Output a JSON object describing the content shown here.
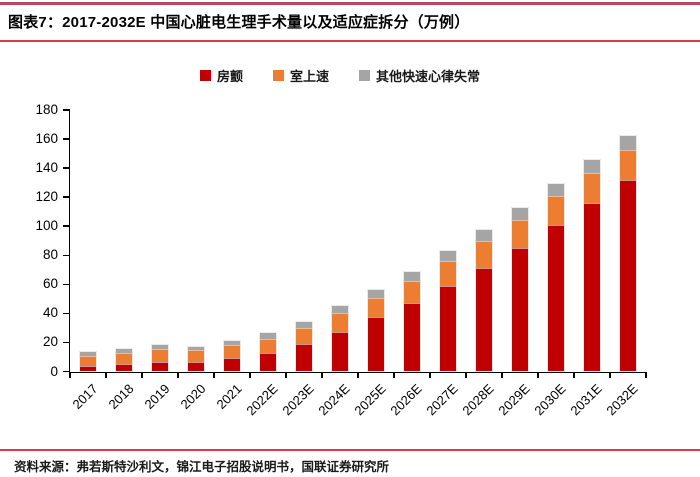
{
  "header": {
    "title": "图表7：2017-2032E 中国心脏电生理手术量以及适应症拆分（万例）"
  },
  "footer": {
    "source": "资料来源：弗若斯特沙利文，锦江电子招股说明书，国联证券研究所"
  },
  "colors": {
    "afib": "#C00000",
    "svt": "#ED7D31",
    "other": "#A5A5A5",
    "rule_top": "#B84A60",
    "rule": "#D83A50",
    "axis": "#000000"
  },
  "chart_data": {
    "type": "bar",
    "stacked": true,
    "title": "2017-2032E 中国心脏电生理手术量以及适应症拆分（万例）",
    "unit": "万例",
    "grid": false,
    "legend_position": "top",
    "categories": [
      "2017",
      "2018",
      "2019",
      "2020",
      "2021",
      "2022E",
      "2023E",
      "2024E",
      "2025E",
      "2026E",
      "2027E",
      "2028E",
      "2029E",
      "2030E",
      "2031E",
      "2032E"
    ],
    "series": [
      {
        "name": "房颤",
        "color": "#C00000",
        "values": [
          3.5,
          5.0,
          6.5,
          6.3,
          9.0,
          13.0,
          18.8,
          27.5,
          37.3,
          47.0,
          59.0,
          71.5,
          85.3,
          100.5,
          116.0,
          131.5
        ]
      },
      {
        "name": "室上速",
        "color": "#ED7D31",
        "values": [
          7.4,
          7.8,
          9.3,
          8.4,
          9.0,
          9.3,
          11.0,
          13.0,
          13.5,
          15.5,
          16.8,
          18.2,
          18.8,
          20.0,
          20.3,
          21.0
        ]
      },
      {
        "name": "其他快速心律失常",
        "color": "#A5A5A5",
        "values": [
          2.6,
          2.4,
          2.4,
          2.0,
          3.0,
          4.0,
          4.2,
          4.8,
          5.5,
          6.3,
          7.0,
          7.5,
          8.3,
          8.5,
          9.0,
          9.5
        ]
      }
    ],
    "totals": [
      13.5,
      15.2,
      18.2,
      16.7,
      21.0,
      26.3,
      34.0,
      45.3,
      56.3,
      68.8,
      82.8,
      97.2,
      112.4,
      129.0,
      145.3,
      162.0
    ],
    "ylim": [
      0,
      180
    ],
    "yticks": [
      0,
      20,
      40,
      60,
      80,
      100,
      120,
      140,
      160,
      180
    ]
  }
}
